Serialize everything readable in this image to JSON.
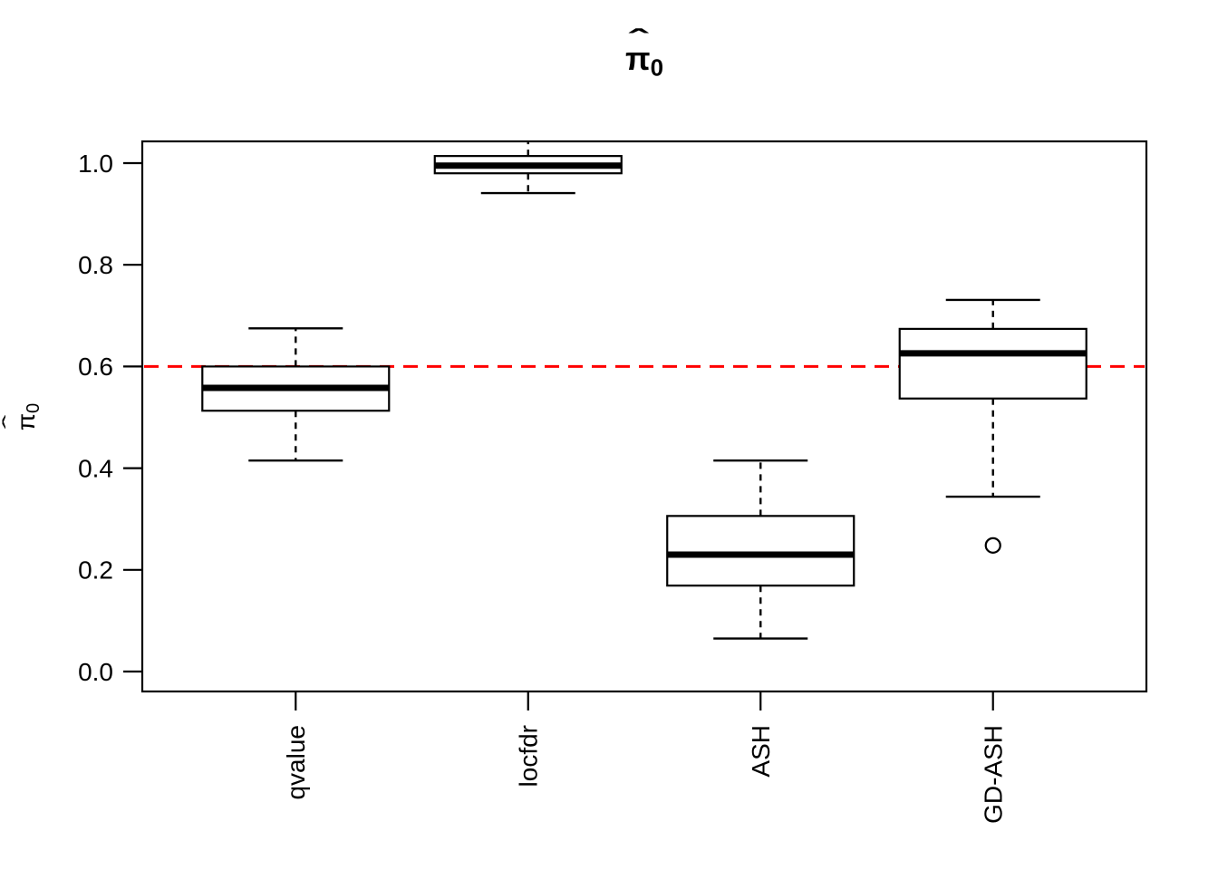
{
  "chart_data": {
    "type": "boxplot",
    "title": {
      "text": "π̂0",
      "base": "π",
      "hat": "ˆ",
      "sub": "0"
    },
    "y_axis": {
      "label": {
        "text": "π̂0",
        "base": "π",
        "hat": "ˆ",
        "sub": "0"
      },
      "ticks": [
        {
          "value": 0.0,
          "label": "0.0"
        },
        {
          "value": 0.2,
          "label": "0.2"
        },
        {
          "value": 0.4,
          "label": "0.4"
        },
        {
          "value": 0.6,
          "label": "0.6"
        },
        {
          "value": 0.8,
          "label": "0.8"
        },
        {
          "value": 1.0,
          "label": "1.0"
        }
      ],
      "range": [
        -0.04,
        1.043
      ]
    },
    "x_axis": {
      "categories": [
        "qvalue",
        "locfdr",
        "ASH",
        "GD-ASH"
      ],
      "label_rotation": -90
    },
    "reference_line": {
      "value": 0.6,
      "color": "#FF0000",
      "style": "dashed"
    },
    "grid": false,
    "legend": "none",
    "colors": {
      "box_stroke": "#000000",
      "median": "#000000",
      "whisker": "#000000",
      "background": "#FFFFFF"
    },
    "boxes": [
      {
        "label": "qvalue",
        "whisker_low": 0.415,
        "q1": 0.513,
        "median": 0.558,
        "q3": 0.6,
        "whisker_high": 0.675,
        "whisker_high_clipped": false,
        "outliers": []
      },
      {
        "label": "locfdr",
        "whisker_low": 0.941,
        "q1": 0.98,
        "median": 0.995,
        "q3": 1.014,
        "whisker_high": 1.05,
        "whisker_high_clipped": true,
        "outliers": []
      },
      {
        "label": "ASH",
        "whisker_low": 0.065,
        "q1": 0.169,
        "median": 0.23,
        "q3": 0.306,
        "whisker_high": 0.415,
        "whisker_high_clipped": false,
        "outliers": []
      },
      {
        "label": "GD-ASH",
        "whisker_low": 0.344,
        "q1": 0.537,
        "median": 0.626,
        "q3": 0.674,
        "whisker_high": 0.731,
        "whisker_high_clipped": false,
        "outliers": [
          0.248
        ]
      }
    ]
  }
}
